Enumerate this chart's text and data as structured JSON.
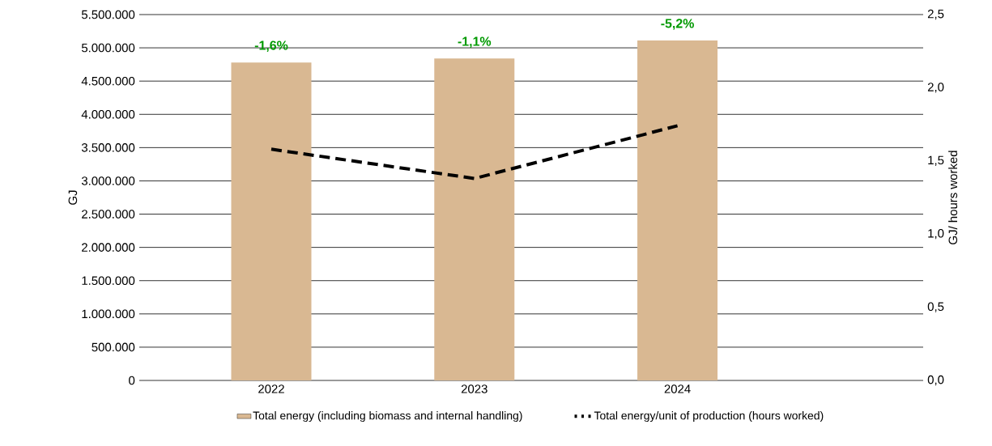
{
  "chart_data": {
    "type": "bar",
    "categories": [
      "2022",
      "2023",
      "2024"
    ],
    "series": [
      {
        "name": "Total energy (including biomass and internal handling)",
        "color": "#d9b892",
        "values": [
          4780000,
          4840000,
          5110000
        ]
      },
      {
        "name": "Total energy/unit of production (hours worked)",
        "type": "line",
        "axis": "y2",
        "color": "#000000",
        "line_style": "dashed",
        "values": [
          1.58,
          1.38,
          1.74
        ]
      }
    ],
    "ylabel": "GJ",
    "y2label": "GJ/ hours worked",
    "ylim": [
      0,
      5500000
    ],
    "yticks": [
      {
        "value": 0,
        "label": "0"
      },
      {
        "value": 500000,
        "label": "500.000"
      },
      {
        "value": 1000000,
        "label": "1.000.000"
      },
      {
        "value": 1500000,
        "label": "1.500.000"
      },
      {
        "value": 2000000,
        "label": "2.000.000"
      },
      {
        "value": 2500000,
        "label": "2.500.000"
      },
      {
        "value": 3000000,
        "label": "3.000.000"
      },
      {
        "value": 3500000,
        "label": "3.500.000"
      },
      {
        "value": 4000000,
        "label": "4.000.000"
      },
      {
        "value": 4500000,
        "label": "4.500.000"
      },
      {
        "value": 5000000,
        "label": "5.000.000"
      },
      {
        "value": 5500000,
        "label": "5.500.000"
      }
    ],
    "y2lim": [
      0,
      2.5
    ],
    "y2ticks": [
      {
        "value": 0,
        "label": "0,0"
      },
      {
        "value": 0.5,
        "label": "0,5"
      },
      {
        "value": 1,
        "label": "1,0"
      },
      {
        "value": 1.5,
        "label": "1,5"
      },
      {
        "value": 2,
        "label": "2,0"
      },
      {
        "value": 2.5,
        "label": "2,5"
      }
    ],
    "grid": "y",
    "legend": "bottom",
    "marker": "none",
    "annotations": [
      {
        "text": "-1,6%",
        "x": "2022",
        "y": 4780000
      },
      {
        "text": "-1,1%",
        "x": "2023",
        "y": 4840000
      },
      {
        "text": "-5,2%",
        "x": "2024",
        "y": 5110000
      }
    ]
  }
}
